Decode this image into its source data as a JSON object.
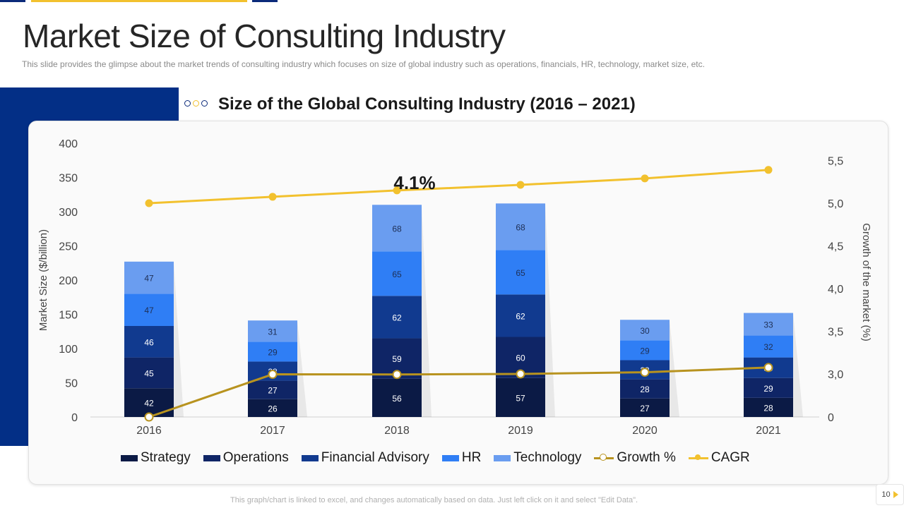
{
  "slide": {
    "title": "Market Size of Consulting Industry",
    "subtitle": "This slide provides  the glimpse about the market trends of consulting industry which focuses on size of global industry such as operations, financials, HR, technology, market size, etc.",
    "chart_heading": "Size of the Global Consulting Industry (2016 – 2021)",
    "footer_note": "This graph/chart is linked to excel, and changes automatically based on data. Just left click on it and select \"Edit Data\".",
    "page_number": "10"
  },
  "colors": {
    "brand_navy": "#032f86",
    "accent_gold": "#f2c12e",
    "strategy": "#0b1a45",
    "operations": "#0f2566",
    "financial_advisory": "#113a8f",
    "hr": "#2f7ef5",
    "technology": "#6a9df0",
    "growth_line": "#b8931f",
    "cagr_line": "#f2c12e"
  },
  "chart_data": {
    "type": "bar",
    "stacked": true,
    "categories": [
      "2016",
      "2017",
      "2018",
      "2019",
      "2020",
      "2021"
    ],
    "series": [
      {
        "name": "Strategy",
        "values": [
          42,
          26,
          56,
          57,
          27,
          28
        ]
      },
      {
        "name": "Operations",
        "values": [
          45,
          27,
          59,
          60,
          28,
          29
        ]
      },
      {
        "name": "Financial Advisory",
        "values": [
          46,
          28,
          62,
          62,
          28,
          30
        ]
      },
      {
        "name": "HR",
        "values": [
          47,
          29,
          65,
          65,
          29,
          32
        ]
      },
      {
        "name": "Technology",
        "values": [
          47,
          31,
          68,
          68,
          30,
          33
        ]
      }
    ],
    "line_series": [
      {
        "name": "Growth %",
        "axis": "right",
        "values": [
          0,
          2.975,
          2.965,
          3.0,
          3.02,
          3.075
        ]
      },
      {
        "name": "CAGR",
        "axis": "right",
        "values": [
          5.0,
          5.075,
          5.15,
          5.215,
          5.29,
          5.39
        ]
      }
    ],
    "annotation": "4.1%",
    "ylabel": "Market Size ($/billion)",
    "y2label": "Growth of the market (%)",
    "ylim": [
      0,
      400
    ],
    "yticks": [
      "0",
      "50",
      "100",
      "150",
      "200",
      "250",
      "300",
      "350",
      "400"
    ],
    "y2ticks": [
      "0",
      "3,0",
      "3,5",
      "4,0",
      "4,5",
      "5,0",
      "5,5"
    ],
    "legend": [
      "Strategy",
      "Operations",
      "Financial Advisory",
      "HR",
      "Technology",
      "Growth %",
      "CAGR"
    ],
    "legend_position": "bottom",
    "grid": false
  }
}
